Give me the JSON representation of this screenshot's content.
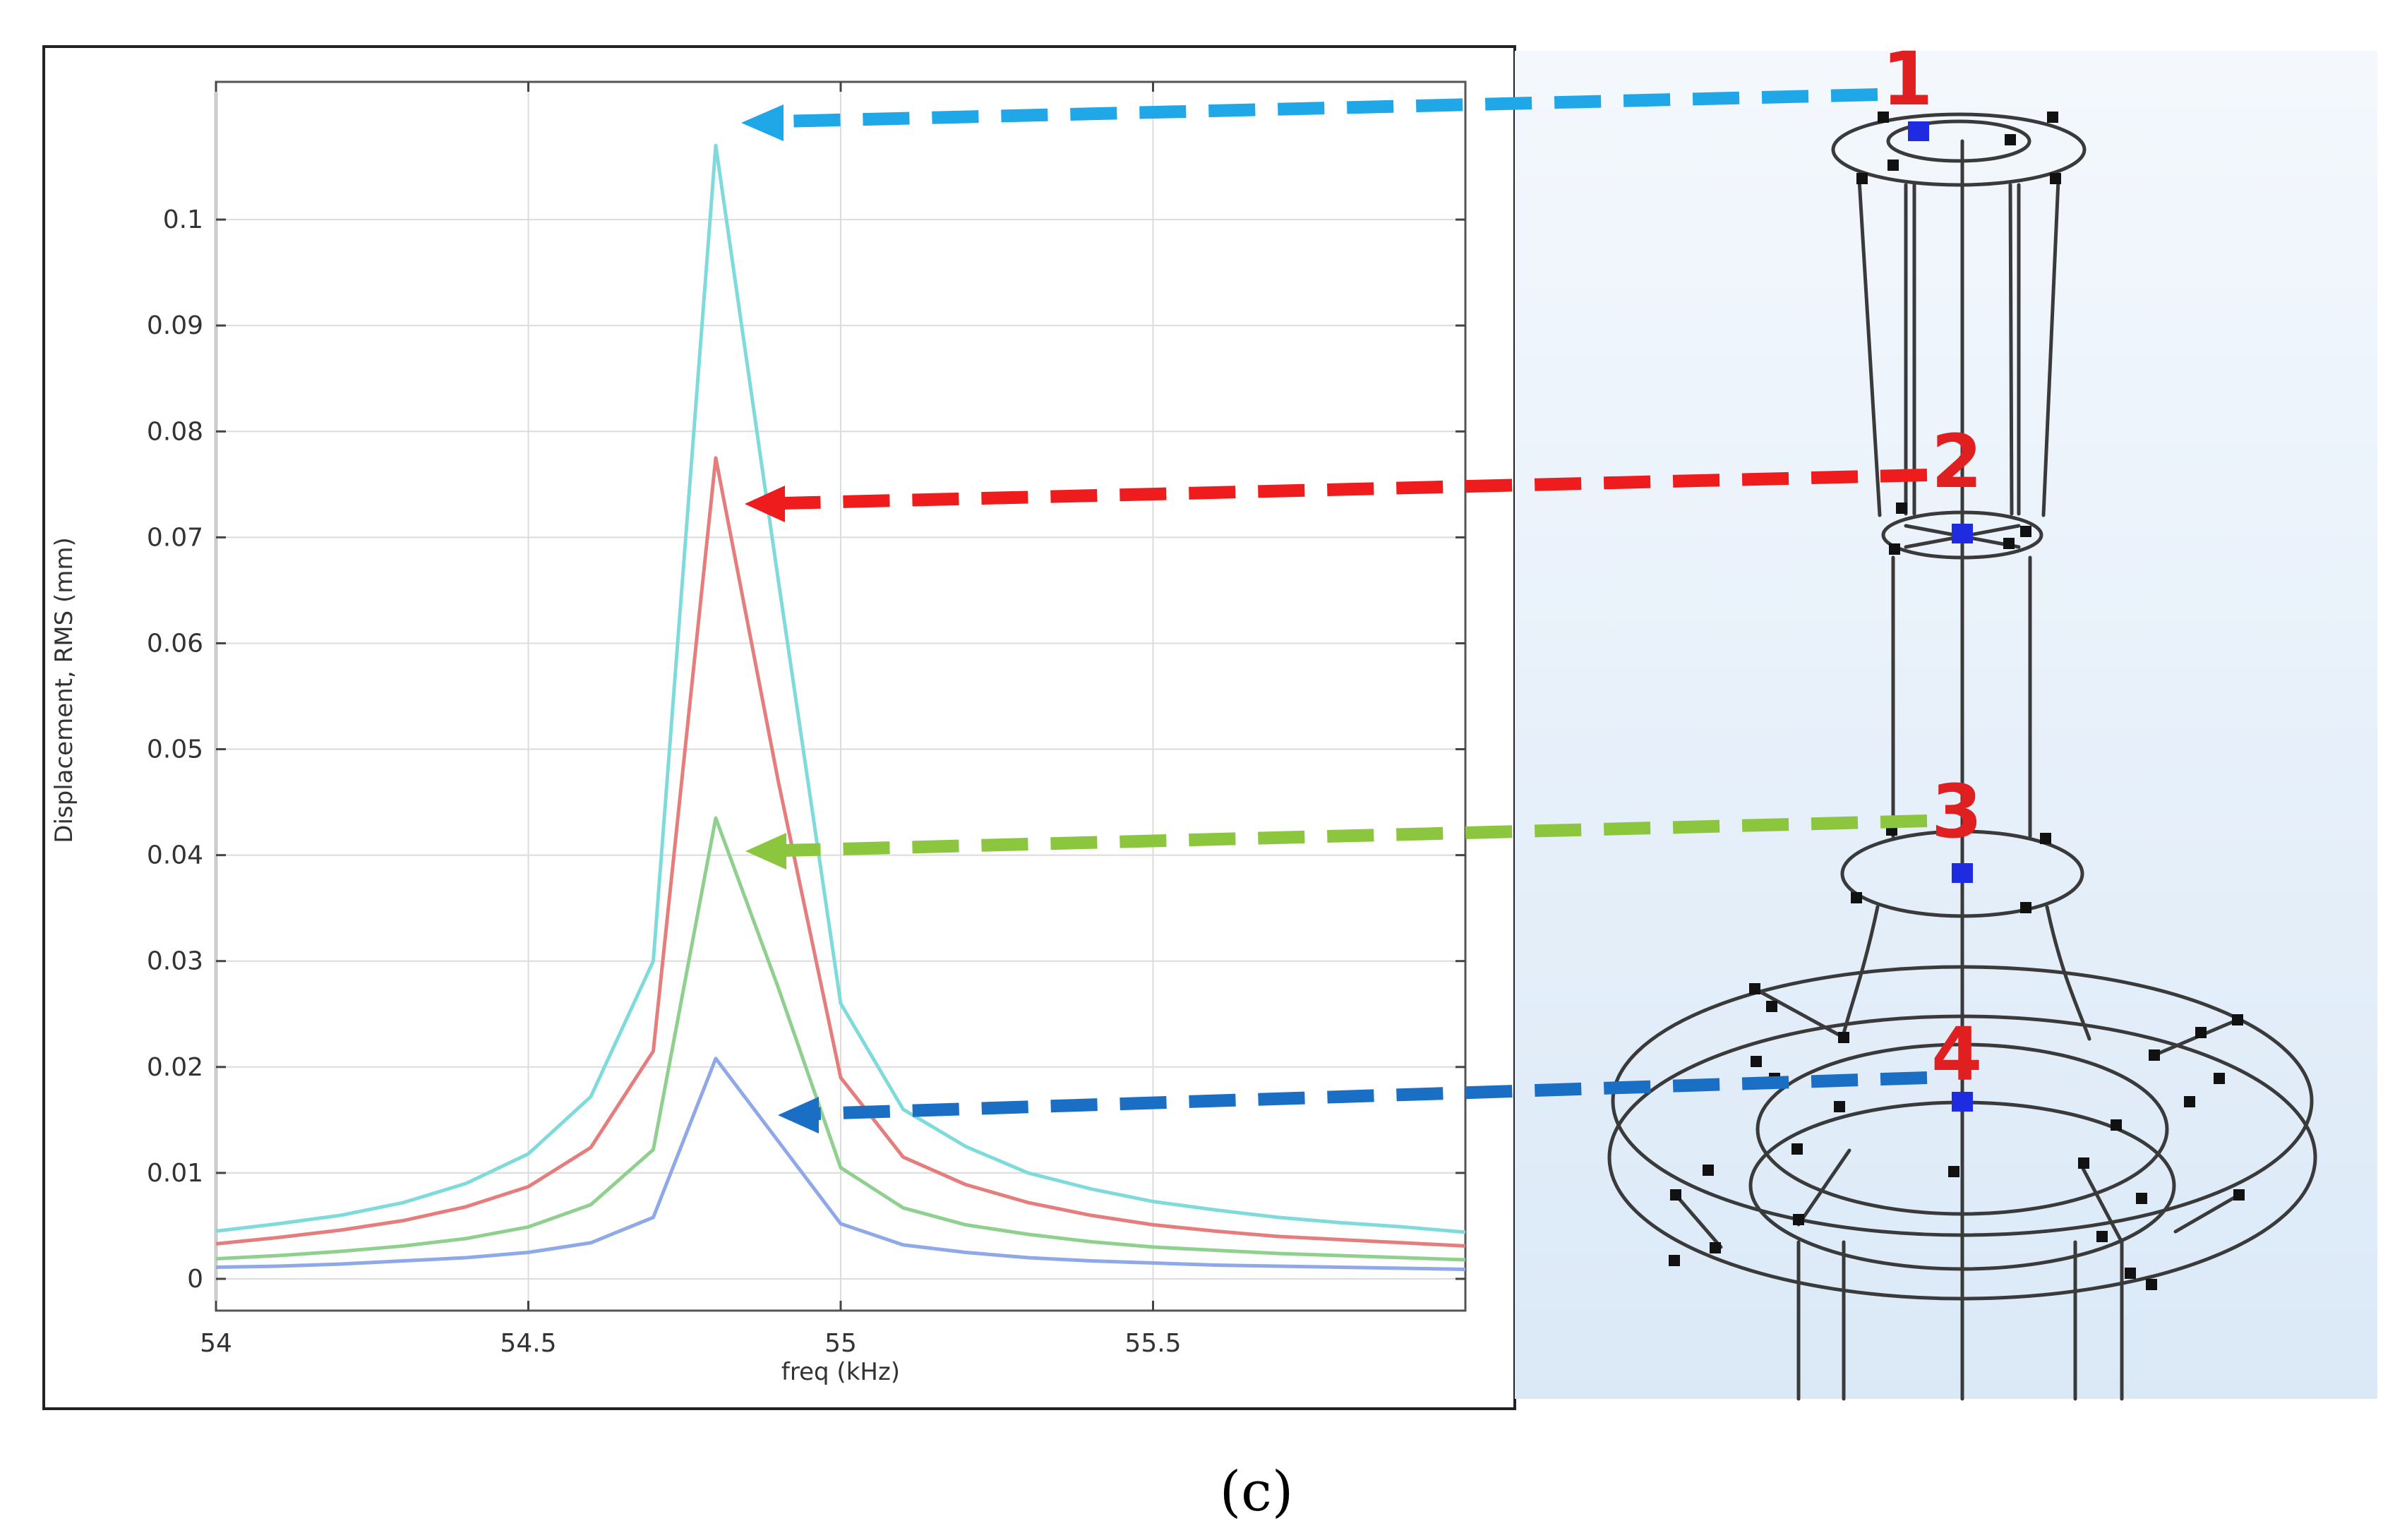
{
  "figure_label": "(c)",
  "chart_data": {
    "type": "line",
    "title": "",
    "xlabel": "freq (kHz)",
    "ylabel": "Displacement, RMS (mm)",
    "xlim": [
      54,
      56
    ],
    "ylim": [
      -0.003,
      0.113
    ],
    "xticks": [
      54,
      54.5,
      55,
      55.5
    ],
    "xtick_labels": [
      "54",
      "54.5",
      "55",
      "55.5"
    ],
    "yticks": [
      0,
      0.01,
      0.02,
      0.03,
      0.04,
      0.05,
      0.06,
      0.07,
      0.08,
      0.09,
      0.1
    ],
    "ytick_labels": [
      "0",
      "0.01",
      "0.02",
      "0.03",
      "0.04",
      "0.05",
      "0.06",
      "0.07",
      "0.08",
      "0.09",
      "0.1"
    ],
    "grid": true,
    "x": [
      54,
      54.1,
      54.2,
      54.3,
      54.4,
      54.5,
      54.6,
      54.7,
      54.8,
      54.9,
      55,
      55.1,
      55.2,
      55.3,
      55.4,
      55.5,
      55.6,
      55.7,
      55.8,
      55.9,
      56
    ],
    "series": [
      {
        "name": "Point 1",
        "color": "#7fdbdb",
        "values": [
          0.0045,
          0.0052,
          0.006,
          0.0072,
          0.009,
          0.0118,
          0.0172,
          0.03,
          0.107,
          0.066,
          0.026,
          0.016,
          0.0125,
          0.01,
          0.0085,
          0.0073,
          0.0065,
          0.0058,
          0.0053,
          0.0049,
          0.0044
        ]
      },
      {
        "name": "Point 2",
        "color": "#e57d7d",
        "values": [
          0.0033,
          0.0039,
          0.0046,
          0.0055,
          0.0068,
          0.0087,
          0.0124,
          0.0215,
          0.0775,
          0.047,
          0.019,
          0.0115,
          0.0089,
          0.0072,
          0.006,
          0.0051,
          0.0045,
          0.004,
          0.0037,
          0.0034,
          0.0031
        ]
      },
      {
        "name": "Point 3",
        "color": "#8fd08f",
        "values": [
          0.0019,
          0.0022,
          0.0026,
          0.0031,
          0.0038,
          0.0049,
          0.007,
          0.0122,
          0.0435,
          0.0275,
          0.0105,
          0.0067,
          0.0051,
          0.0042,
          0.0035,
          0.003,
          0.0027,
          0.0024,
          0.0022,
          0.002,
          0.0018
        ]
      },
      {
        "name": "Point 4",
        "color": "#8ea8e8",
        "values": [
          0.0011,
          0.0012,
          0.0014,
          0.0017,
          0.002,
          0.0025,
          0.0034,
          0.0058,
          0.0208,
          0.013,
          0.0052,
          0.0032,
          0.0025,
          0.002,
          0.0017,
          0.0015,
          0.0013,
          0.0012,
          0.0011,
          0.001,
          0.0009
        ]
      }
    ]
  },
  "model": {
    "points": [
      {
        "label": "1",
        "arrow_color": "#1fa7e8"
      },
      {
        "label": "2",
        "arrow_color": "#ee1c1c"
      },
      {
        "label": "3",
        "arrow_color": "#8cc63f"
      },
      {
        "label": "4",
        "arrow_color": "#1a6fc4"
      }
    ]
  }
}
